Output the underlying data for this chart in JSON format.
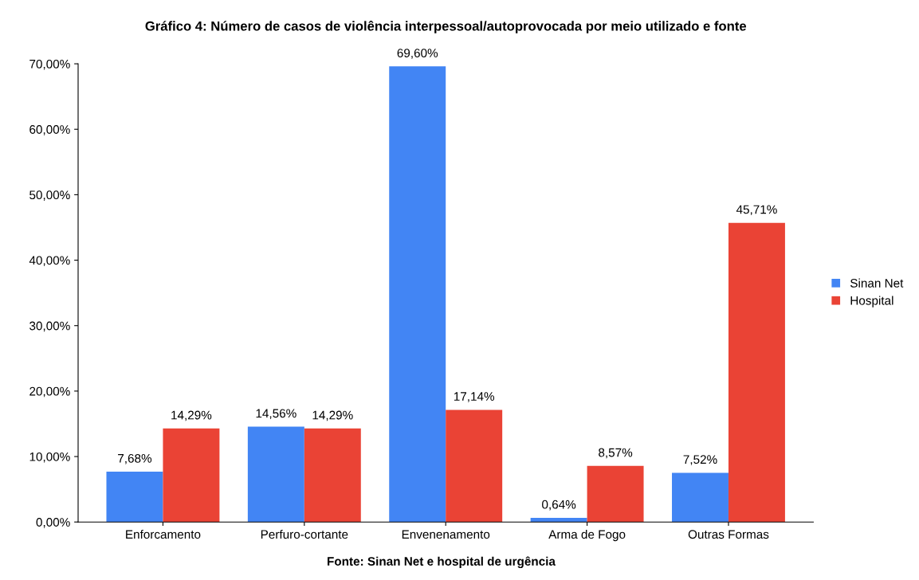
{
  "chart_data": {
    "type": "bar",
    "title": "Gráfico 4: Número de casos de violência interpessoal/autoprovocada por meio utilizado e fonte",
    "categories": [
      "Enforcamento",
      "Perfuro-cortante",
      "Envenenamento",
      "Arma de Fogo",
      "Outras Formas"
    ],
    "series": [
      {
        "name": "Sinan Net",
        "color": "#4285f4",
        "values": [
          7.68,
          14.56,
          69.6,
          0.64,
          7.52
        ],
        "value_labels": [
          "7,68%",
          "14,56%",
          "69,60%",
          "0,64%",
          "7,52%"
        ]
      },
      {
        "name": "Hospital",
        "color": "#ea4335",
        "values": [
          14.29,
          14.29,
          17.14,
          8.57,
          45.71
        ],
        "value_labels": [
          "14,29%",
          "14,29%",
          "17,14%",
          "8,57%",
          "45,71%"
        ]
      }
    ],
    "ylim": [
      0,
      70
    ],
    "yticks": [
      {
        "value": 0,
        "label": "0,00%"
      },
      {
        "value": 10,
        "label": "10,00%"
      },
      {
        "value": 20,
        "label": "20,00%"
      },
      {
        "value": 30,
        "label": "30,00%"
      },
      {
        "value": 40,
        "label": "40,00%"
      },
      {
        "value": 50,
        "label": "50,00%"
      },
      {
        "value": 60,
        "label": "60,00%"
      },
      {
        "value": 70,
        "label": "70,00%"
      }
    ],
    "grid": false,
    "legend": "right",
    "annotations": [
      "Fonte: Sinan Net e hospital de urgência"
    ]
  }
}
